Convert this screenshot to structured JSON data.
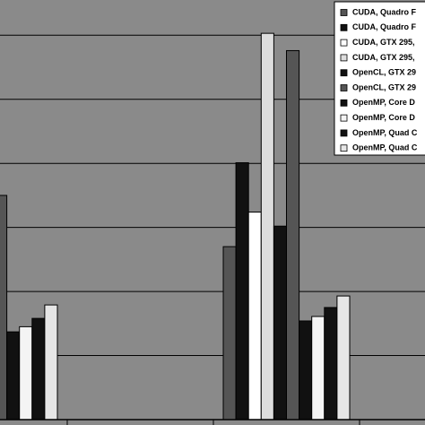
{
  "chart_data": {
    "type": "bar",
    "categories": [
      null,
      null,
      null,
      null
    ],
    "series": [
      {
        "name": "CUDA, Quadro F",
        "color": "#555555",
        "values": [
          null,
          null,
          2.7,
          null
        ]
      },
      {
        "name": "CUDA, Quadro F",
        "color": "#111111",
        "values": [
          null,
          null,
          4.01,
          null
        ]
      },
      {
        "name": "CUDA, GTX 295,",
        "color": "#ffffff",
        "values": [
          null,
          null,
          3.24,
          null
        ]
      },
      {
        "name": "CUDA, GTX 295,",
        "color": "#dddddd",
        "values": [
          null,
          null,
          6.03,
          null
        ]
      },
      {
        "name": "OpenCL, GTX 29",
        "color": "#111111",
        "values": [
          null,
          null,
          3.02,
          null
        ]
      },
      {
        "name": "OpenCL, GTX 29",
        "color": "#555555",
        "values": [
          3.5,
          null,
          5.76,
          null
        ]
      },
      {
        "name": "OpenMP, Core D",
        "color": "#111111",
        "values": [
          1.37,
          null,
          1.54,
          null
        ]
      },
      {
        "name": "OpenMP, Core D",
        "color": "#f4f4f4",
        "values": [
          1.45,
          null,
          1.61,
          null
        ]
      },
      {
        "name": "OpenMP, Quad C",
        "color": "#111111",
        "values": [
          1.58,
          null,
          1.75,
          null
        ]
      },
      {
        "name": "OpenMP, Quad C",
        "color": "#e6e6e6",
        "values": [
          1.79,
          null,
          1.93,
          null
        ]
      }
    ],
    "ylim": [
      0,
      6.55
    ],
    "yticks": [
      1,
      2,
      3,
      4,
      5,
      6
    ],
    "grid": true,
    "legend": "top-right"
  }
}
